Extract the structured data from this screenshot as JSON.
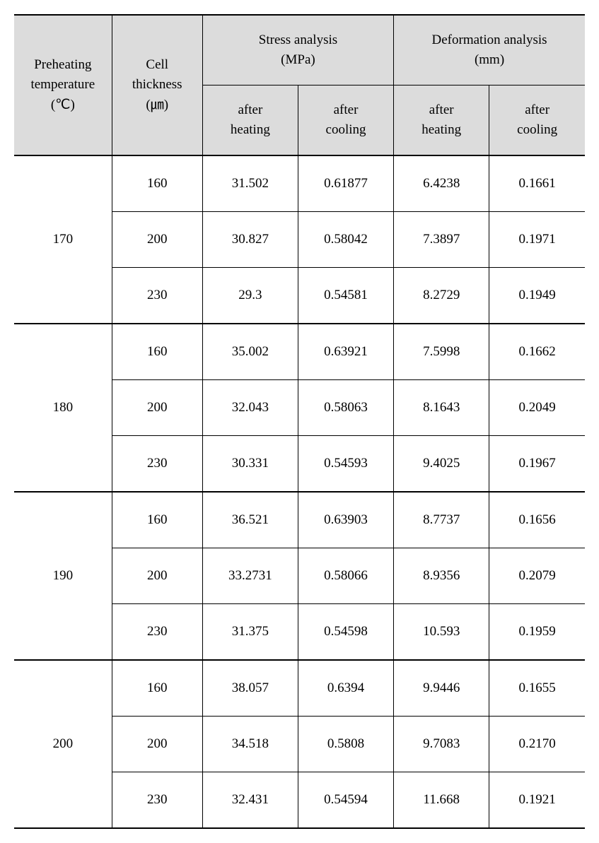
{
  "table": {
    "header_bg": "#dcdcdc",
    "border_color": "#000000",
    "columns": {
      "preheating": {
        "label1": "Preheating",
        "label2": "temperature",
        "unit": "(℃)"
      },
      "thickness": {
        "label1": "Cell",
        "label2": "thickness",
        "unit": "(㎛)"
      },
      "stress": {
        "title": "Stress analysis",
        "unit": "(MPa)",
        "sub1": "after",
        "sub1b": "heating",
        "sub2": "after",
        "sub2b": "cooling"
      },
      "deformation": {
        "title": "Deformation analysis",
        "unit": "(mm)",
        "sub1": "after",
        "sub1b": "heating",
        "sub2": "after",
        "sub2b": "cooling"
      }
    },
    "groups": [
      {
        "temp": "170",
        "rows": [
          {
            "thickness": "160",
            "sh": "31.502",
            "sc": "0.61877",
            "dh": "6.4238",
            "dc": "0.1661"
          },
          {
            "thickness": "200",
            "sh": "30.827",
            "sc": "0.58042",
            "dh": "7.3897",
            "dc": "0.1971"
          },
          {
            "thickness": "230",
            "sh": "29.3",
            "sc": "0.54581",
            "dh": "8.2729",
            "dc": "0.1949"
          }
        ]
      },
      {
        "temp": "180",
        "rows": [
          {
            "thickness": "160",
            "sh": "35.002",
            "sc": "0.63921",
            "dh": "7.5998",
            "dc": "0.1662"
          },
          {
            "thickness": "200",
            "sh": "32.043",
            "sc": "0.58063",
            "dh": "8.1643",
            "dc": "0.2049"
          },
          {
            "thickness": "230",
            "sh": "30.331",
            "sc": "0.54593",
            "dh": "9.4025",
            "dc": "0.1967"
          }
        ]
      },
      {
        "temp": "190",
        "rows": [
          {
            "thickness": "160",
            "sh": "36.521",
            "sc": "0.63903",
            "dh": "8.7737",
            "dc": "0.1656"
          },
          {
            "thickness": "200",
            "sh": "33.2731",
            "sc": "0.58066",
            "dh": "8.9356",
            "dc": "0.2079"
          },
          {
            "thickness": "230",
            "sh": "31.375",
            "sc": "0.54598",
            "dh": "10.593",
            "dc": "0.1959"
          }
        ]
      },
      {
        "temp": "200",
        "rows": [
          {
            "thickness": "160",
            "sh": "38.057",
            "sc": "0.6394",
            "dh": "9.9446",
            "dc": "0.1655"
          },
          {
            "thickness": "200",
            "sh": "34.518",
            "sc": "0.5808",
            "dh": "9.7083",
            "dc": "0.2170"
          },
          {
            "thickness": "230",
            "sh": "32.431",
            "sc": "0.54594",
            "dh": "11.668",
            "dc": "0.1921"
          }
        ]
      }
    ]
  }
}
